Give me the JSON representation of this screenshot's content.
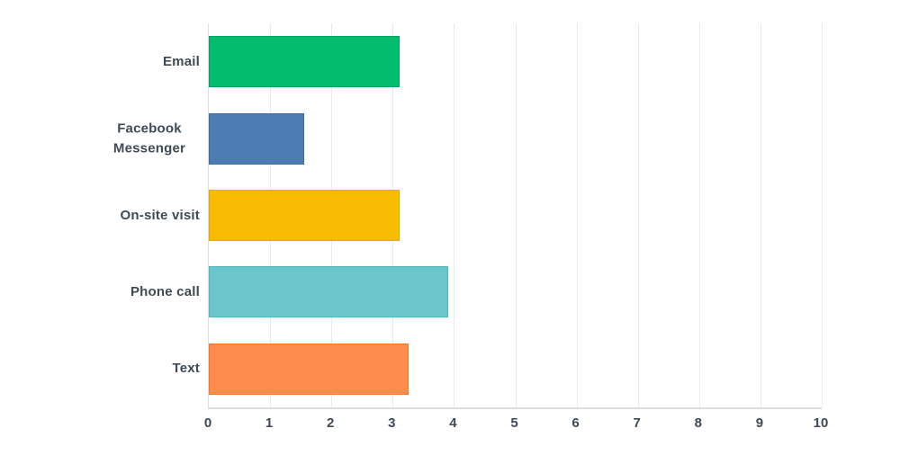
{
  "chart_data": {
    "type": "bar",
    "orientation": "horizontal",
    "title": "",
    "xlabel": "",
    "ylabel": "",
    "categories": [
      "Email",
      "Facebook Messenger",
      "On-site visit",
      "Phone call",
      "Text"
    ],
    "values": [
      3.12,
      1.56,
      3.12,
      3.9,
      3.26
    ],
    "bar_colors": [
      "#04bc6e",
      "#4d7cb5",
      "#f9bc02",
      "#6bc6cc",
      "#fd8c4d"
    ],
    "bar_border_colors": [
      "#03a35f",
      "#3d6ba5",
      "#e2a900",
      "#54b6bd",
      "#f4772e"
    ],
    "xlim": [
      0,
      10
    ],
    "x_ticks": [
      0,
      1,
      2,
      3,
      4,
      5,
      6,
      7,
      8,
      9,
      10
    ],
    "grid": true,
    "legend": false
  },
  "colors": {
    "background": "#ffffff",
    "text": "#3e4a56",
    "gridline": "#eaeaea",
    "axis_border": "#dedede"
  }
}
